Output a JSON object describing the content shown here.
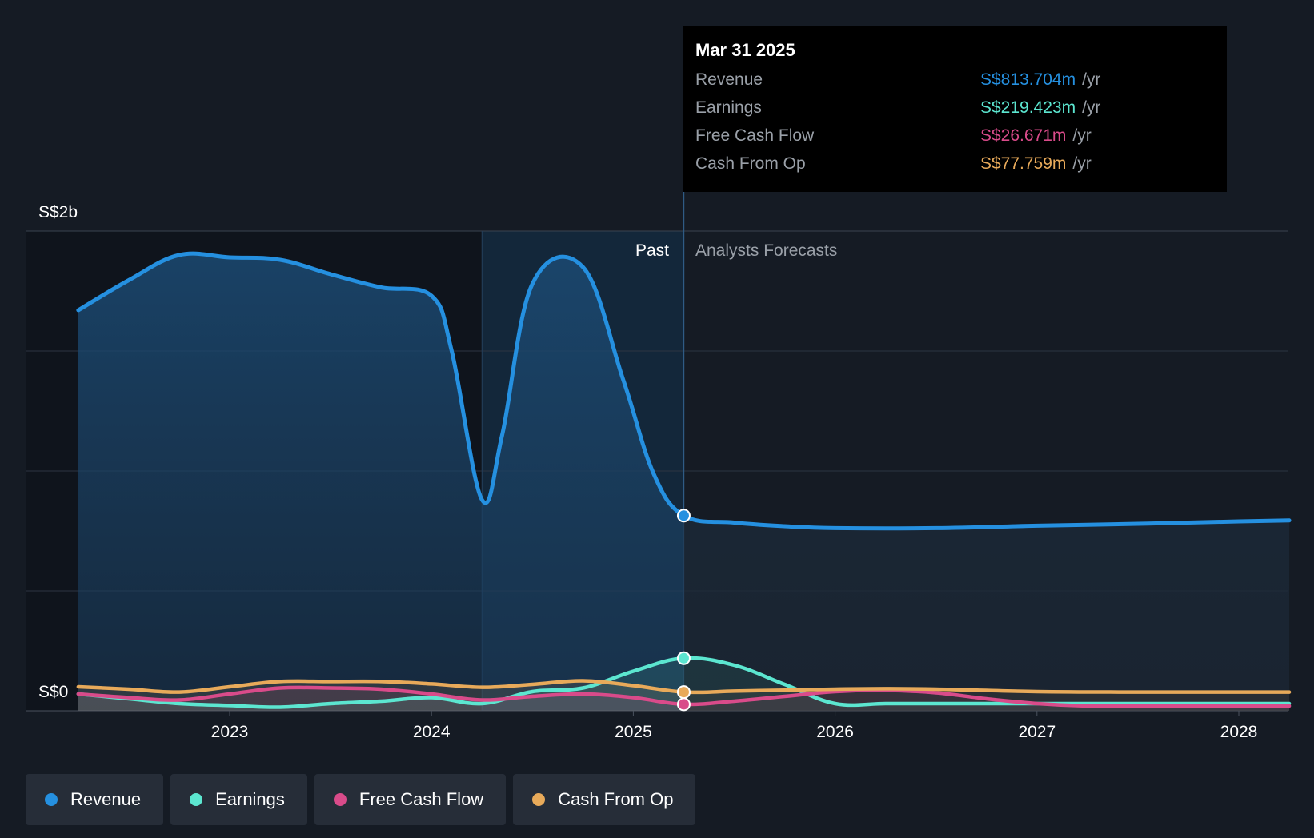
{
  "colors": {
    "revenue": "#2590e0",
    "earnings": "#5ce6d0",
    "free_cash_flow": "#d94b8a",
    "cash_from_op": "#e8aa5a",
    "gridline": "#2c3542",
    "text": "#ffffff",
    "muted": "#9aa0a8"
  },
  "tooltip": {
    "date": "Mar 31 2025",
    "rows": [
      {
        "label": "Revenue",
        "value": "S$813.704m",
        "unit": "/yr",
        "color": "#2590e0"
      },
      {
        "label": "Earnings",
        "value": "S$219.423m",
        "unit": "/yr",
        "color": "#5ce6d0"
      },
      {
        "label": "Free Cash Flow",
        "value": "S$26.671m",
        "unit": "/yr",
        "color": "#d94b8a"
      },
      {
        "label": "Cash From Op",
        "value": "S$77.759m",
        "unit": "/yr",
        "color": "#e8aa5a"
      }
    ]
  },
  "legend": [
    {
      "label": "Revenue",
      "color": "#2590e0"
    },
    {
      "label": "Earnings",
      "color": "#5ce6d0"
    },
    {
      "label": "Free Cash Flow",
      "color": "#d94b8a"
    },
    {
      "label": "Cash From Op",
      "color": "#e8aa5a"
    }
  ],
  "chart_data": {
    "type": "line",
    "y_axis_labels": [
      "S$2b",
      "S$0"
    ],
    "ylim": [
      0,
      2000
    ],
    "y_unit": "S$m",
    "xlim": [
      2022.25,
      2028.25
    ],
    "x_ticks": [
      2023,
      2024,
      2025,
      2026,
      2027,
      2028
    ],
    "x_tick_labels": [
      "2023",
      "2024",
      "2025",
      "2026",
      "2027",
      "2028"
    ],
    "past_label": "Past",
    "forecast_label": "Analysts Forecasts",
    "divider_x": 2025.25,
    "highlight_start_x": 2024.25,
    "grid": true,
    "series": [
      {
        "name": "Revenue",
        "points": [
          [
            2022.25,
            1670
          ],
          [
            2022.5,
            1795
          ],
          [
            2022.75,
            1900
          ],
          [
            2023,
            1890
          ],
          [
            2023.25,
            1880
          ],
          [
            2023.5,
            1820
          ],
          [
            2023.75,
            1765
          ],
          [
            2024,
            1730
          ],
          [
            2024.1,
            1500
          ],
          [
            2024.25,
            880
          ],
          [
            2024.35,
            1150
          ],
          [
            2024.5,
            1780
          ],
          [
            2024.75,
            1850
          ],
          [
            2024.95,
            1380
          ],
          [
            2025.1,
            990
          ],
          [
            2025.25,
            814
          ],
          [
            2025.5,
            785
          ],
          [
            2025.75,
            770
          ],
          [
            2026,
            762
          ],
          [
            2026.5,
            762
          ],
          [
            2027,
            772
          ],
          [
            2027.5,
            780
          ],
          [
            2028,
            790
          ],
          [
            2028.25,
            794
          ]
        ]
      },
      {
        "name": "Earnings",
        "points": [
          [
            2022.25,
            70
          ],
          [
            2022.5,
            50
          ],
          [
            2022.75,
            30
          ],
          [
            2023,
            22
          ],
          [
            2023.25,
            15
          ],
          [
            2023.5,
            30
          ],
          [
            2023.75,
            40
          ],
          [
            2024,
            55
          ],
          [
            2024.25,
            30
          ],
          [
            2024.5,
            80
          ],
          [
            2024.75,
            95
          ],
          [
            2025,
            165
          ],
          [
            2025.25,
            219
          ],
          [
            2025.5,
            190
          ],
          [
            2025.75,
            110
          ],
          [
            2026,
            30
          ],
          [
            2026.25,
            30
          ],
          [
            2026.5,
            30
          ],
          [
            2027,
            30
          ],
          [
            2027.5,
            30
          ],
          [
            2028.25,
            30
          ]
        ]
      },
      {
        "name": "Free Cash Flow",
        "points": [
          [
            2022.25,
            70
          ],
          [
            2022.5,
            55
          ],
          [
            2022.75,
            45
          ],
          [
            2023,
            70
          ],
          [
            2023.25,
            95
          ],
          [
            2023.5,
            95
          ],
          [
            2023.75,
            90
          ],
          [
            2024,
            70
          ],
          [
            2024.25,
            45
          ],
          [
            2024.5,
            60
          ],
          [
            2024.75,
            70
          ],
          [
            2025,
            55
          ],
          [
            2025.25,
            27
          ],
          [
            2025.5,
            40
          ],
          [
            2025.75,
            60
          ],
          [
            2026,
            80
          ],
          [
            2026.25,
            85
          ],
          [
            2026.5,
            75
          ],
          [
            2026.75,
            50
          ],
          [
            2027,
            30
          ],
          [
            2027.25,
            20
          ],
          [
            2027.5,
            20
          ],
          [
            2028.25,
            20
          ]
        ]
      },
      {
        "name": "Cash From Op",
        "points": [
          [
            2022.25,
            100
          ],
          [
            2022.5,
            90
          ],
          [
            2022.75,
            78
          ],
          [
            2023,
            100
          ],
          [
            2023.25,
            122
          ],
          [
            2023.5,
            122
          ],
          [
            2023.75,
            122
          ],
          [
            2024,
            112
          ],
          [
            2024.25,
            98
          ],
          [
            2024.5,
            110
          ],
          [
            2024.75,
            125
          ],
          [
            2025,
            105
          ],
          [
            2025.25,
            78
          ],
          [
            2025.5,
            82
          ],
          [
            2025.75,
            86
          ],
          [
            2026,
            90
          ],
          [
            2026.25,
            92
          ],
          [
            2026.5,
            90
          ],
          [
            2027,
            80
          ],
          [
            2027.5,
            78
          ],
          [
            2028.25,
            78
          ]
        ]
      }
    ]
  }
}
